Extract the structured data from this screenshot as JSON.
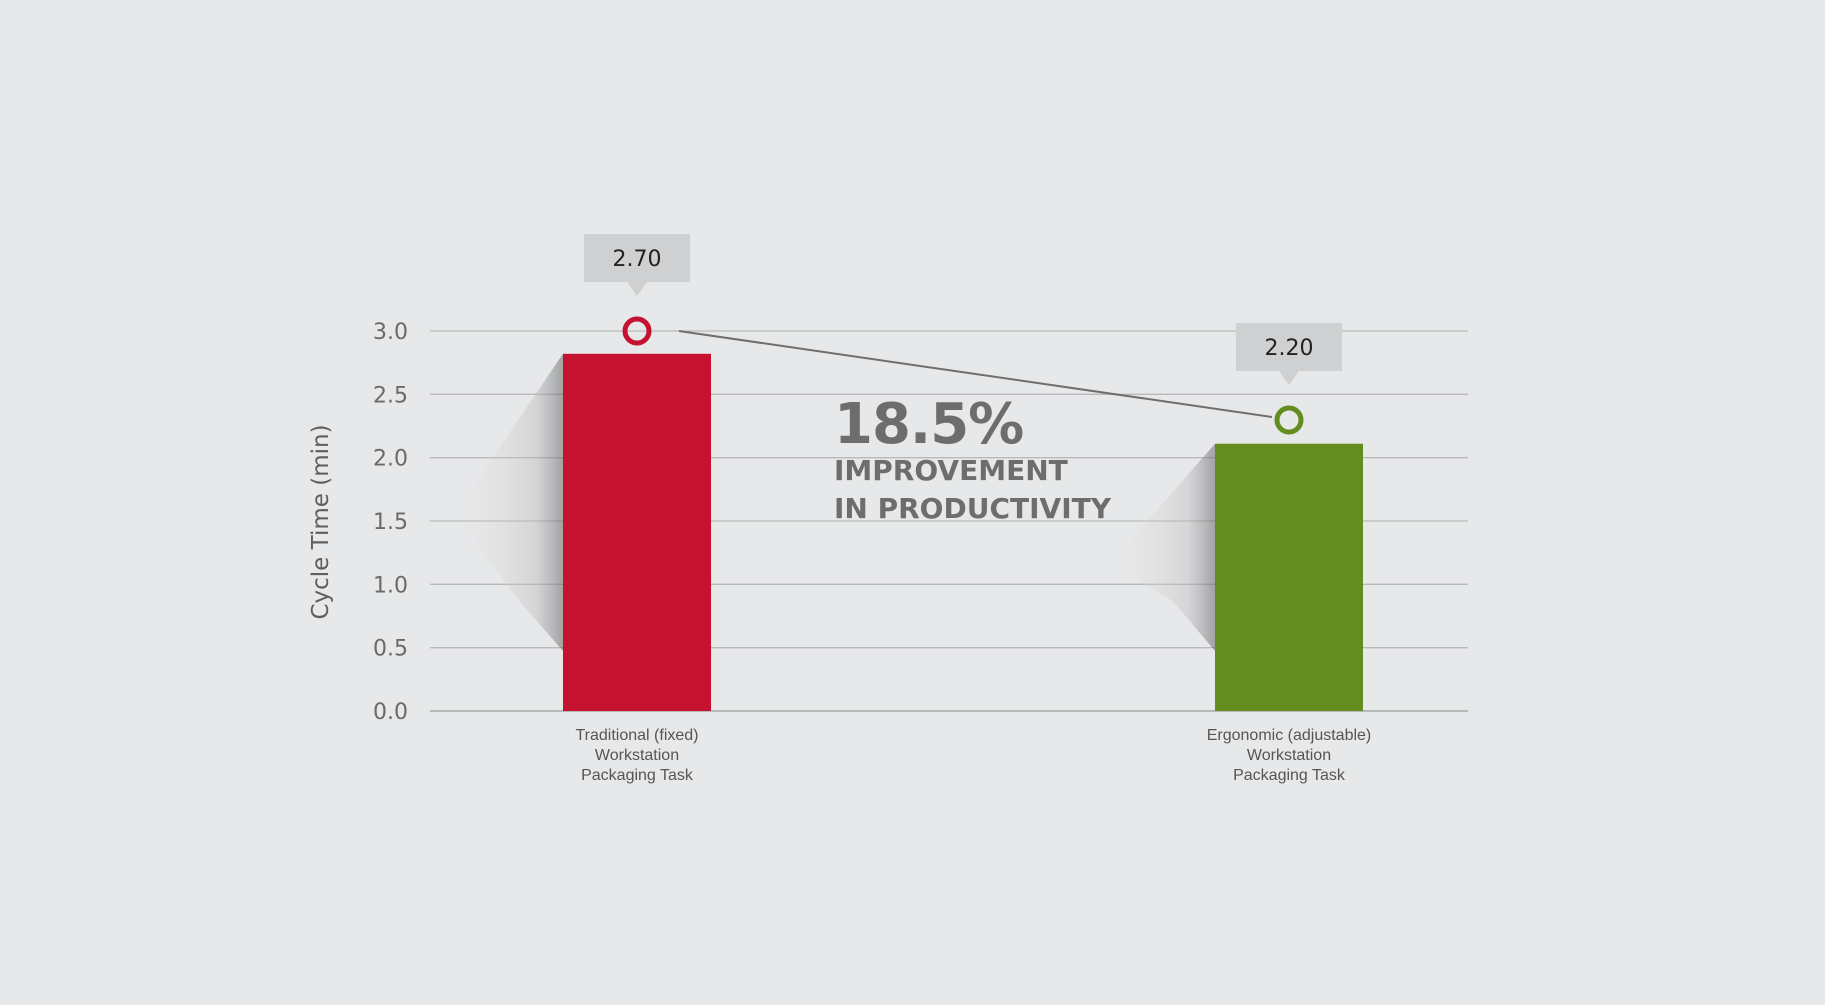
{
  "chart_data": {
    "type": "bar",
    "ylabel": "Cycle Time (min)",
    "ylim": [
      0,
      3.0
    ],
    "yticks": [
      "0.0",
      "0.5",
      "1.0",
      "1.5",
      "2.0",
      "2.5",
      "3.0"
    ],
    "grid": true,
    "categories": [
      [
        "Traditional (fixed)",
        "Workstation",
        "Packaging Task"
      ],
      [
        "Ergonomic (adjustable)",
        "Workstation",
        "Packaging Task"
      ]
    ],
    "values": [
      2.7,
      2.2
    ],
    "value_labels": [
      "2.70",
      "2.20"
    ],
    "colors": [
      "#c41230",
      "#648c1e"
    ],
    "annotation": {
      "percent": "18.5%",
      "line1": "IMPROVEMENT",
      "line2": "IN PRODUCTIVITY"
    }
  }
}
